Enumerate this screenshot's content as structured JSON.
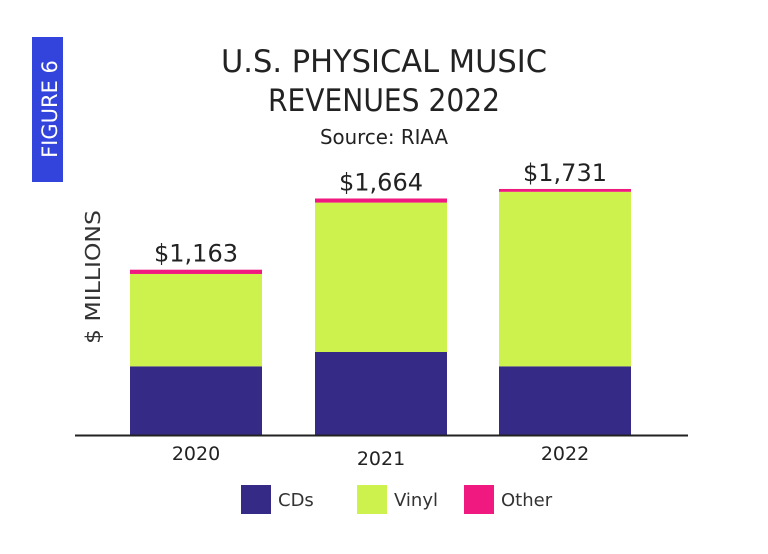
{
  "figure_label": "FIGURE 6",
  "colors": {
    "figure_box": "#3344dd",
    "cds": "#352a85",
    "vinyl": "#cdf24d",
    "other": "#f0197f"
  },
  "chart_data": {
    "type": "bar",
    "stacked": true,
    "title_line1": "U.S. PHYSICAL MUSIC",
    "title_line2": "REVENUES 2022",
    "subtitle": "Source: RIAA",
    "xlabel": "",
    "ylabel": "$ MILLIONS",
    "ylim": [
      0,
      1900
    ],
    "grid": false,
    "legend_position": "bottom",
    "categories": [
      "2020",
      "2021",
      "2022"
    ],
    "series": [
      {
        "name": "CDs",
        "values": [
          483,
          584,
          483
        ]
      },
      {
        "name": "Vinyl",
        "values": [
          650,
          1051,
          1228
        ]
      },
      {
        "name": "Other",
        "values": [
          30,
          29,
          20
        ]
      }
    ],
    "totals": [
      1163,
      1664,
      1731
    ],
    "total_labels": [
      "$1,163",
      "$1,664",
      "$1,731"
    ]
  }
}
